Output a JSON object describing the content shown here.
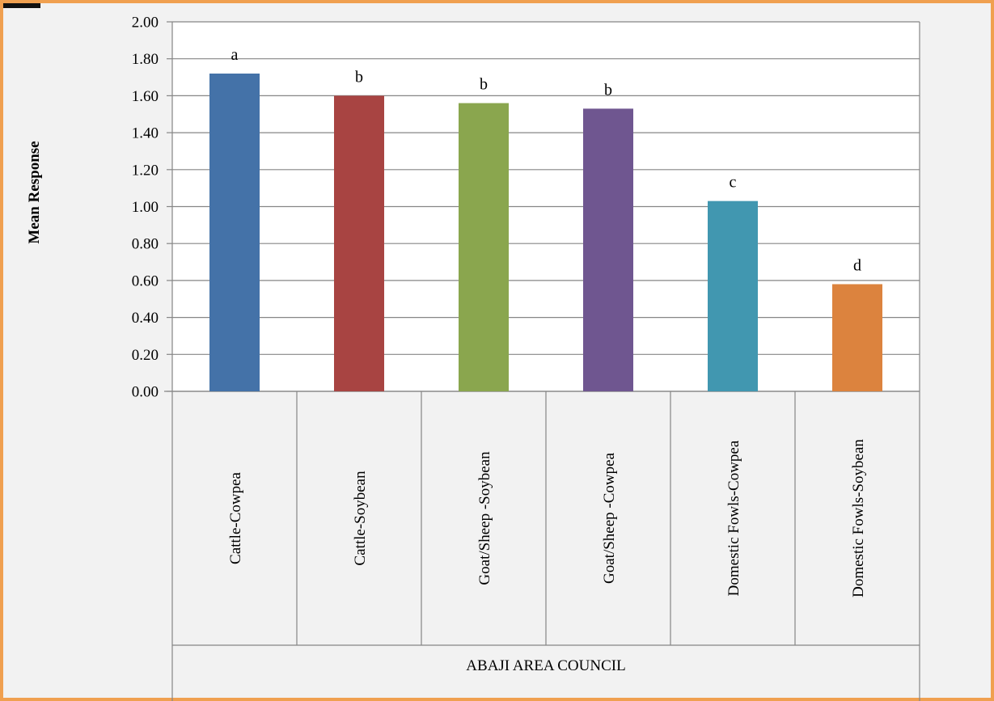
{
  "chart_data": {
    "type": "bar",
    "title": "",
    "xlabel": "ABAJI AREA COUNCIL",
    "ylabel": "Mean Response",
    "ylim": [
      0,
      2
    ],
    "yticks": [
      "0.00",
      "0.20",
      "0.40",
      "0.60",
      "0.80",
      "1.00",
      "1.20",
      "1.40",
      "1.60",
      "1.80",
      "2.00"
    ],
    "categories": [
      "Cattle-Cowpea",
      "Cattle-Soybean",
      "Goat/Sheep -Soybean",
      "Goat/Sheep -Cowpea",
      "Domestic Fowls-Cowpea",
      "Domestic Fowls-Soybean"
    ],
    "values": [
      1.72,
      1.6,
      1.56,
      1.53,
      1.03,
      0.58
    ],
    "data_labels": [
      "a",
      "b",
      "b",
      "b",
      "c",
      "d"
    ],
    "colors": [
      "#4472a8",
      "#a84442",
      "#8aa64e",
      "#6f5690",
      "#4197b0",
      "#dc833e"
    ],
    "grid": true,
    "legend": "none"
  },
  "colors": {
    "frame_border": "#f0a050",
    "frame_background": "#f2f2f2",
    "plot_background": "#ffffff",
    "gridline": "#868686"
  }
}
